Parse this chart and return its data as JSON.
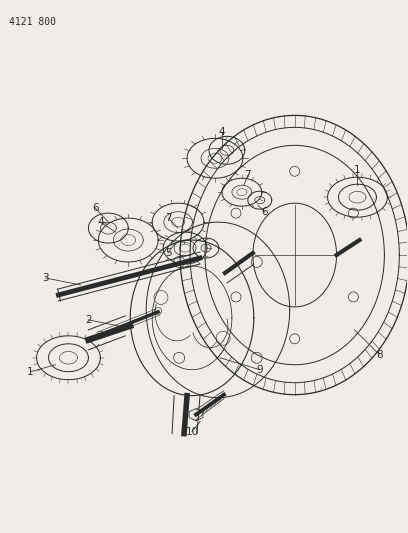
{
  "title_code": "4121 800",
  "bg": "#f0ede8",
  "lc": "#2a2a2a",
  "lw": 0.7,
  "fig_w": 4.08,
  "fig_h": 5.33,
  "dpi": 100
}
